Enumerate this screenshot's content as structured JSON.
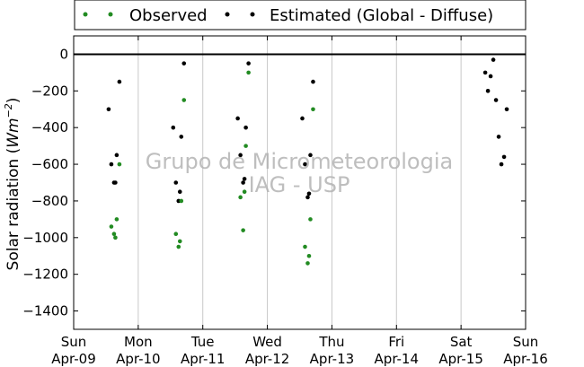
{
  "chart_data": {
    "type": "scatter",
    "ylabel_text": "Solar radiation (",
    "ylabel_unit": "Wm",
    "ylabel_exp": "−2",
    "ylabel_close": ")",
    "ylim": [
      -1500,
      100
    ],
    "yticks": [
      0,
      -200,
      -400,
      -600,
      -800,
      -1000,
      -1200,
      -1400
    ],
    "xlim": [
      "2017-04-09",
      "2017-04-16"
    ],
    "xticks": [
      {
        "day": "Sun",
        "date": "Apr-09"
      },
      {
        "day": "Mon",
        "date": "Apr-10"
      },
      {
        "day": "Tue",
        "date": "Apr-11"
      },
      {
        "day": "Wed",
        "date": "Apr-12"
      },
      {
        "day": "Thu",
        "date": "Apr-13"
      },
      {
        "day": "Fri",
        "date": "Apr-14"
      },
      {
        "day": "Sat",
        "date": "Apr-15"
      },
      {
        "day": "Sun",
        "date": "Apr-16"
      }
    ],
    "grid": "vertical",
    "legend_position": "top",
    "watermark_line1": "Grupo de Micrometeorologia",
    "watermark_line2": "IAG - USP",
    "series": [
      {
        "name": "Observed",
        "color": "#228b22",
        "marker": "dot",
        "x": [
          "2017-04-09T14:00",
          "2017-04-09T15:00",
          "2017-04-09T15:30",
          "2017-04-09T16:00",
          "2017-04-09T17:00",
          "2017-04-10T14:00",
          "2017-04-10T15:00",
          "2017-04-10T15:30",
          "2017-04-10T16:00",
          "2017-04-10T17:00",
          "2017-04-11T14:00",
          "2017-04-11T15:00",
          "2017-04-11T15:30",
          "2017-04-11T16:00",
          "2017-04-11T17:00",
          "2017-04-12T14:00",
          "2017-04-12T15:00",
          "2017-04-12T15:30",
          "2017-04-12T16:00",
          "2017-04-12T17:00"
        ],
        "y": [
          -940,
          -980,
          -1000,
          -900,
          -600,
          -980,
          -1050,
          -1020,
          -800,
          -250,
          -780,
          -960,
          -750,
          -500,
          -100,
          -1050,
          -1140,
          -1100,
          -900,
          -300
        ]
      },
      {
        "name": "Estimated (Global - Diffuse)",
        "color": "#000000",
        "marker": "dot",
        "x": [
          "2017-04-09T13:00",
          "2017-04-09T14:00",
          "2017-04-09T15:00",
          "2017-04-09T15:30",
          "2017-04-09T16:00",
          "2017-04-09T17:00",
          "2017-04-10T13:00",
          "2017-04-10T14:00",
          "2017-04-10T15:00",
          "2017-04-10T15:30",
          "2017-04-10T16:00",
          "2017-04-10T17:00",
          "2017-04-11T13:00",
          "2017-04-11T14:00",
          "2017-04-11T15:00",
          "2017-04-11T15:30",
          "2017-04-11T16:00",
          "2017-04-11T17:00",
          "2017-04-12T13:00",
          "2017-04-12T14:00",
          "2017-04-12T15:00",
          "2017-04-12T15:30",
          "2017-04-12T16:00",
          "2017-04-12T17:00",
          "2017-04-15T09:00",
          "2017-04-15T10:00",
          "2017-04-15T11:00",
          "2017-04-15T12:00",
          "2017-04-15T13:00",
          "2017-04-15T14:00",
          "2017-04-15T15:00",
          "2017-04-15T16:00",
          "2017-04-15T17:00"
        ],
        "y": [
          -300,
          -600,
          -700,
          -700,
          -550,
          -150,
          -400,
          -700,
          -800,
          -750,
          -450,
          -50,
          -350,
          -550,
          -700,
          -680,
          -400,
          -50,
          -350,
          -600,
          -780,
          -760,
          -550,
          -150,
          -100,
          -200,
          -120,
          -30,
          -250,
          -450,
          -600,
          -560,
          -300
        ]
      }
    ]
  }
}
